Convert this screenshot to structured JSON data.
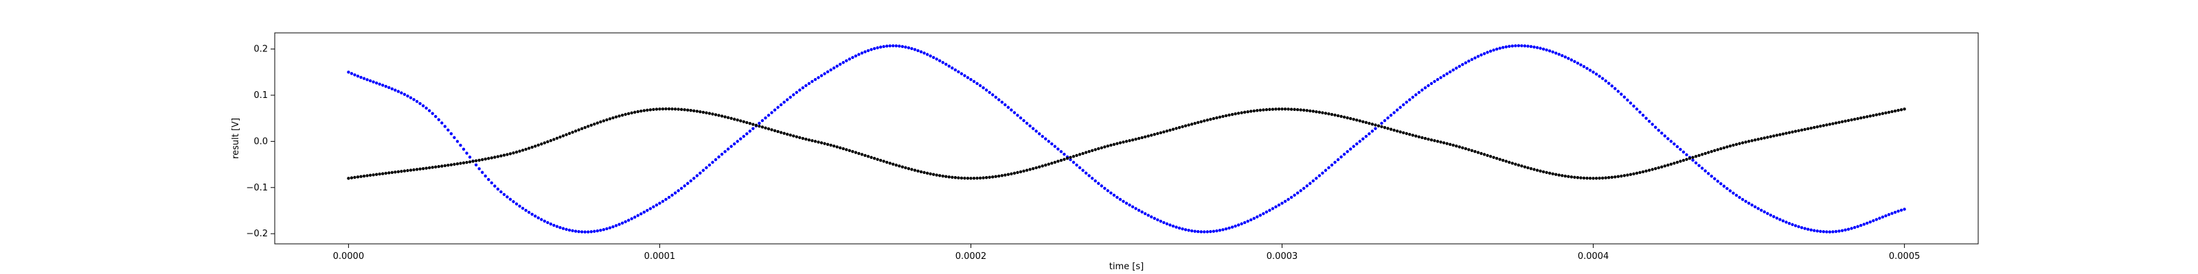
{
  "chart_data": {
    "type": "scatter",
    "title": "",
    "xlabel": "time [s]",
    "ylabel": "result [V]",
    "xlim": [
      -2.37e-05,
      0.0005237
    ],
    "ylim": [
      -0.222,
      0.235
    ],
    "x_ticks": [
      0,
      0.0001,
      0.0002,
      0.0003,
      0.0004,
      0.0005
    ],
    "x_tick_labels": [
      "0.0000",
      "0.0001",
      "0.0002",
      "0.0003",
      "0.0004",
      "0.0005"
    ],
    "y_ticks": [
      -0.2,
      -0.1,
      0.0,
      0.1,
      0.2
    ],
    "y_tick_labels": [
      "−0.2",
      "−0.1",
      "0.0",
      "0.1",
      "0.2"
    ],
    "grid": false,
    "legend": "none",
    "series": [
      {
        "color": "#0000ff",
        "marker": "dot",
        "x": [
          0,
          2.5e-05,
          5e-05,
          7.5e-05,
          0.0001,
          0.000125,
          0.00015,
          0.000175,
          0.0002,
          0.000225,
          0.00025,
          0.000275,
          0.0003,
          0.000325,
          0.00035,
          0.000375,
          0.0004,
          0.000425,
          0.00045,
          0.000475,
          0.0005
        ],
        "y": [
          0.15,
          0.072,
          -0.115,
          -0.196,
          -0.134,
          0.0,
          0.134,
          0.207,
          0.134,
          0.0,
          -0.134,
          -0.196,
          -0.134,
          0.0,
          0.134,
          0.207,
          0.15,
          0.0,
          -0.134,
          -0.196,
          -0.147
        ]
      },
      {
        "color": "#000000",
        "marker": "dot",
        "x": [
          0,
          5e-05,
          0.0001,
          0.00015,
          0.0002,
          0.00025,
          0.0003,
          0.00035,
          0.0004,
          0.00045,
          0.0005
        ],
        "y": [
          -0.08,
          -0.03,
          0.07,
          0.0,
          -0.08,
          0.0,
          0.07,
          0.0,
          -0.08,
          0.0,
          0.07
        ]
      }
    ]
  }
}
